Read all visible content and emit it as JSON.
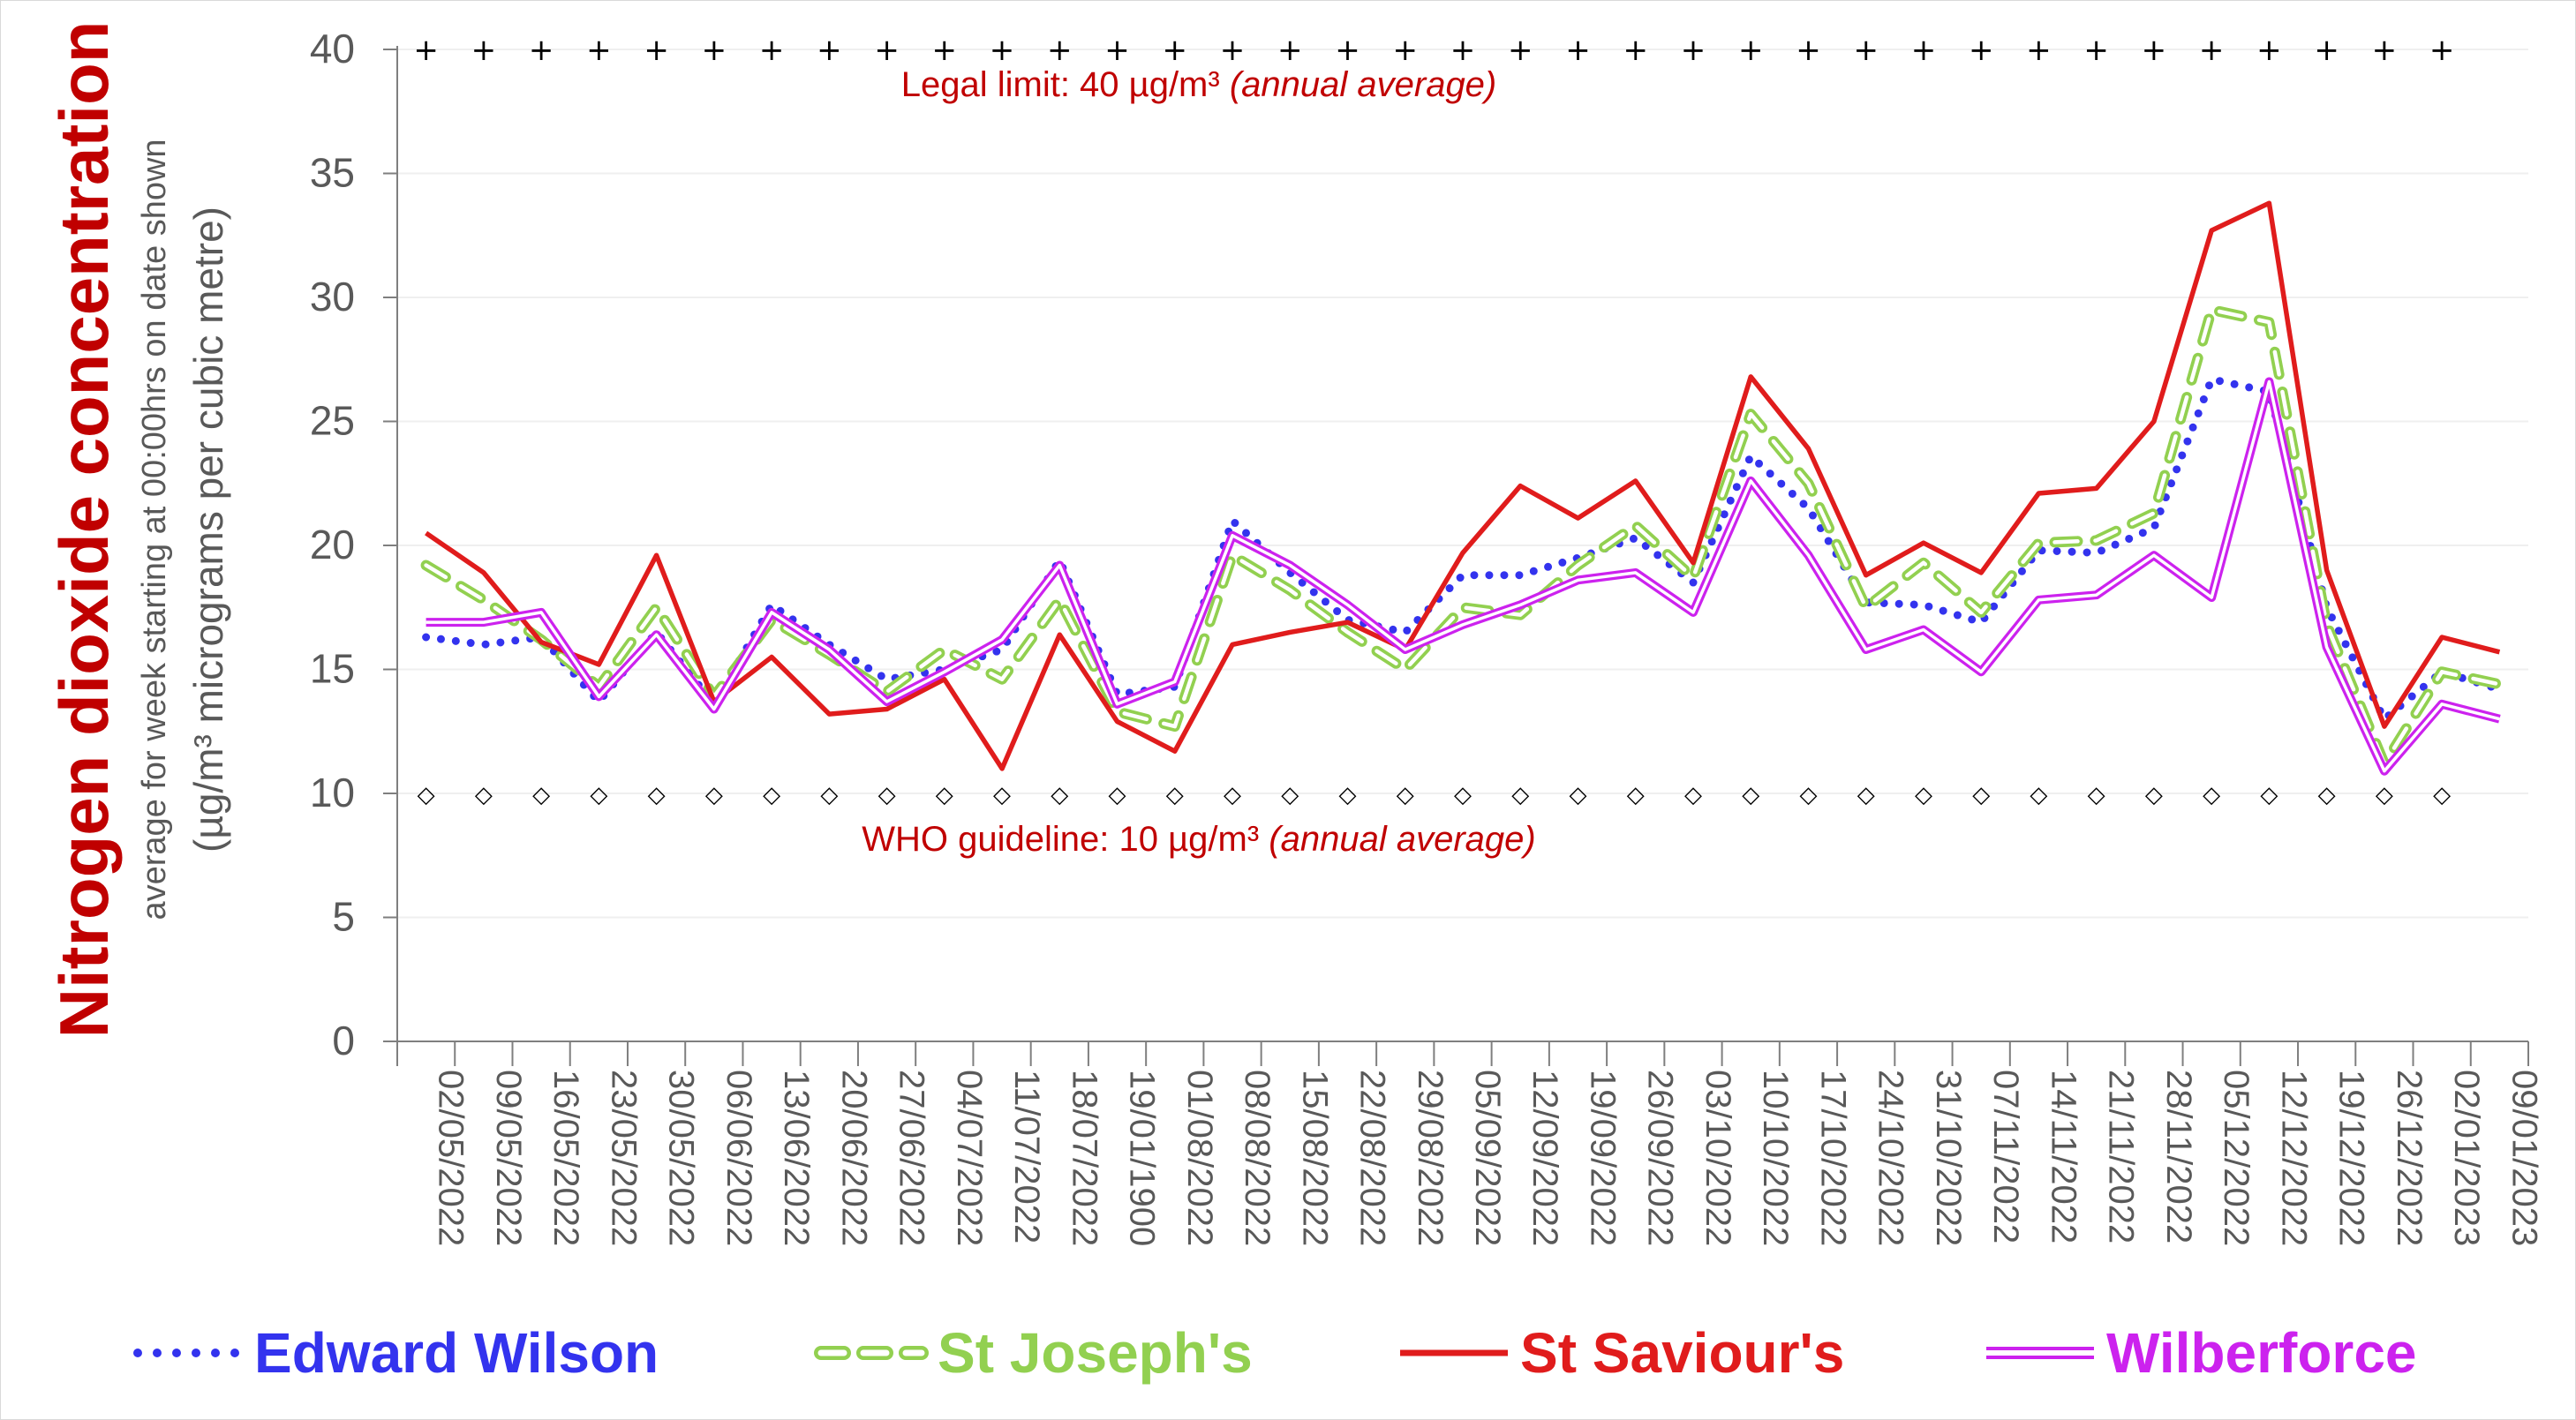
{
  "chart_data": {
    "type": "line",
    "title": "Nitrogen dioxide concentration",
    "ylabel_line1": "average for week starting at 00:00hrs on date shown",
    "ylabel_line2": "(µg/m³ micrograms per cubic metre)",
    "ylim": [
      0,
      40
    ],
    "yticks": [
      0,
      5,
      10,
      15,
      20,
      25,
      30,
      35,
      40
    ],
    "grid": true,
    "legend_position": "bottom",
    "categories": [
      "02/05/2022",
      "09/05/2022",
      "16/05/2022",
      "23/05/2022",
      "30/05/2022",
      "06/06/2022",
      "13/06/2022",
      "20/06/2022",
      "27/06/2022",
      "04/07/2022",
      "11/07/2022",
      "18/07/2022",
      "19/01/1900",
      "01/08/2022",
      "08/08/2022",
      "15/08/2022",
      "22/08/2022",
      "29/08/2022",
      "05/09/2022",
      "12/09/2022",
      "19/09/2022",
      "26/09/2022",
      "03/10/2022",
      "10/10/2022",
      "17/10/2022",
      "24/10/2022",
      "31/10/2022",
      "07/11/2022",
      "14/11/2022",
      "21/11/2022",
      "28/11/2022",
      "05/12/2022",
      "12/12/2022",
      "19/12/2022",
      "26/12/2022",
      "02/01/2023",
      "09/01/2023"
    ],
    "series": [
      {
        "name": "Edward Wilson",
        "color": "#3333ee",
        "style": "dotted",
        "values": [
          16.3,
          16.0,
          16.3,
          13.7,
          16.5,
          13.6,
          17.6,
          16.0,
          14.6,
          15.0,
          15.8,
          19.4,
          14.0,
          14.3,
          21.0,
          18.9,
          17.0,
          16.5,
          18.8,
          18.8,
          19.5,
          20.3,
          18.5,
          23.6,
          21.5,
          17.7,
          17.6,
          16.9,
          19.8,
          19.7,
          20.7,
          26.7,
          26.2,
          17.5,
          13.0,
          14.9,
          14.2
        ]
      },
      {
        "name": "St Joseph's",
        "color": "#92d050",
        "style": "dashed",
        "values": [
          19.2,
          17.8,
          16.2,
          14.3,
          17.5,
          13.9,
          17.0,
          15.6,
          14.1,
          15.8,
          14.6,
          17.8,
          13.3,
          12.7,
          19.6,
          18.2,
          16.5,
          15.0,
          17.5,
          17.2,
          19.2,
          20.8,
          18.7,
          25.3,
          22.5,
          17.5,
          19.3,
          17.3,
          20.1,
          20.2,
          21.3,
          29.5,
          29.0,
          16.8,
          11.2,
          14.9,
          14.4
        ]
      },
      {
        "name": "St Saviour's",
        "color": "#e01c1c",
        "style": "solid",
        "values": [
          20.5,
          18.9,
          16.1,
          15.2,
          19.6,
          13.7,
          15.5,
          13.2,
          13.4,
          14.6,
          11.0,
          16.4,
          12.9,
          11.7,
          16.0,
          16.5,
          16.9,
          15.8,
          19.7,
          22.4,
          21.1,
          22.6,
          19.3,
          26.8,
          23.9,
          18.8,
          20.1,
          18.9,
          22.1,
          22.3,
          25.0,
          32.7,
          33.8,
          19.0,
          12.7,
          16.3,
          15.7
        ]
      },
      {
        "name": "Wilberforce",
        "color": "#cc22ee",
        "style": "double",
        "values": [
          16.9,
          16.9,
          17.3,
          13.9,
          16.4,
          13.4,
          17.3,
          15.8,
          13.7,
          14.9,
          16.2,
          19.2,
          13.6,
          14.5,
          20.4,
          19.2,
          17.6,
          15.8,
          16.8,
          17.6,
          18.6,
          18.9,
          17.3,
          22.6,
          19.6,
          15.8,
          16.6,
          14.9,
          17.8,
          18.0,
          19.6,
          17.9,
          26.6,
          15.9,
          10.9,
          13.6,
          13.0
        ]
      }
    ],
    "reference_lines": [
      {
        "value": 40,
        "marker": "+",
        "label": "Legal limit: 40 µg/m³",
        "note": "(annual average)"
      },
      {
        "value": 10,
        "marker": "◇",
        "label": "WHO guideline: 10 µg/m³",
        "note": "(annual average)"
      }
    ],
    "colors": {
      "title": "#c00000",
      "annotation": "#c00000",
      "axis_text": "#595959"
    }
  }
}
